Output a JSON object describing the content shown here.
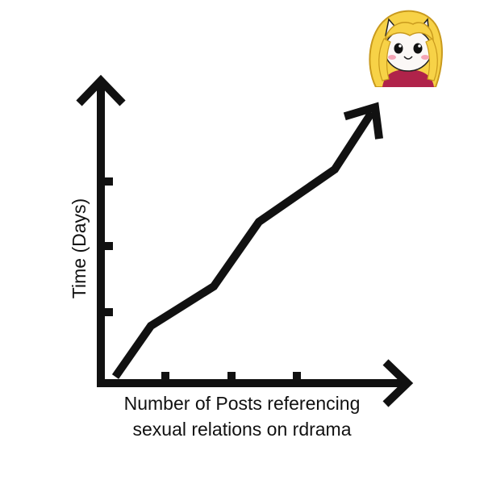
{
  "chart_data": {
    "type": "line",
    "title": "",
    "xlabel_lines": [
      "Number of Posts referencing",
      "sexual relations on rdrama"
    ],
    "ylabel": "Time (Days)",
    "x_ticks": 3,
    "y_ticks": 3,
    "xlim": [
      0,
      360
    ],
    "ylim": [
      0,
      360
    ],
    "grid": false,
    "series": [
      {
        "x": [
          18,
          62,
          140,
          196,
          290,
          340
        ],
        "y": [
          8,
          71,
          120,
          200,
          265,
          342
        ]
      }
    ],
    "line_color": "#111111",
    "end_marker": "arrow",
    "corner_image": "blonde-cat-avatar"
  }
}
